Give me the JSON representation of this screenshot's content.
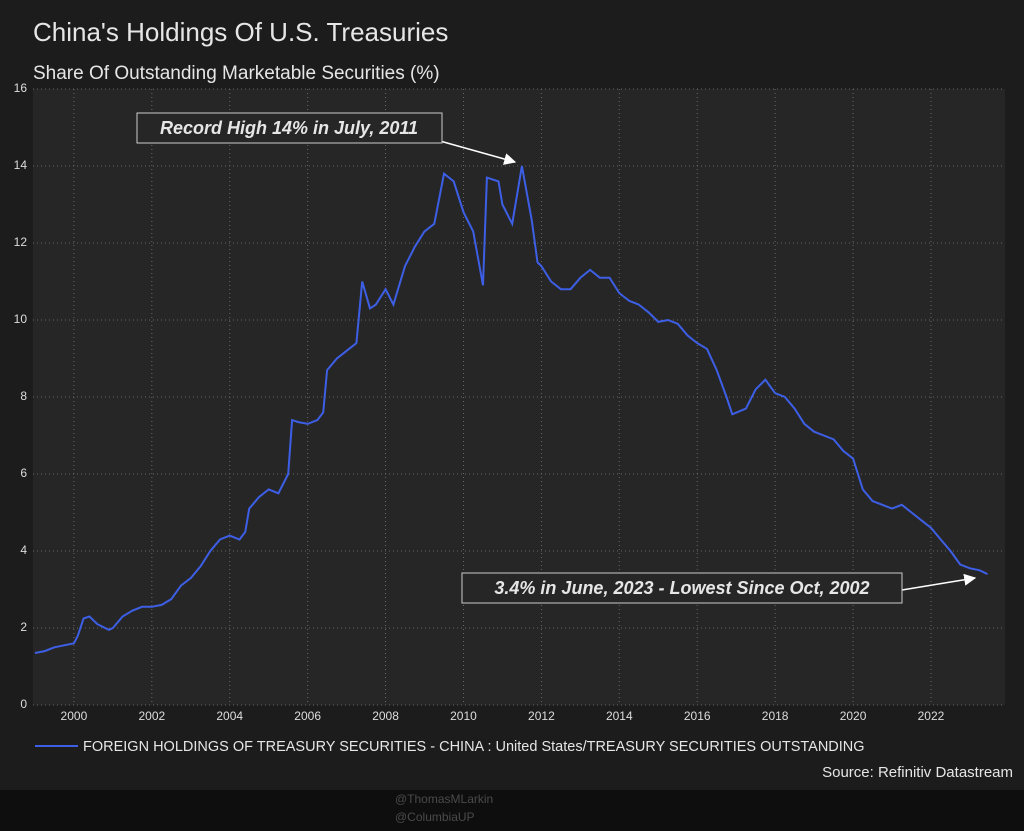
{
  "chart_data": {
    "type": "line",
    "title": "China's Holdings Of U.S. Treasuries",
    "subtitle": "Share Of Outstanding Marketable Securities (%)",
    "annotations": [
      "Record High 14% in July, 2011",
      "3.4% in June, 2023 - Lowest Since Oct, 2002"
    ],
    "source": "Source: Refinitiv Datastream",
    "watermark": [
      "@ThomasMLarkin",
      "@ColumbiaUP"
    ],
    "x": [
      1999.0,
      1999.25,
      1999.5,
      1999.75,
      2000.0,
      2000.1,
      2000.25,
      2000.4,
      2000.6,
      2000.9,
      2001.0,
      2001.25,
      2001.5,
      2001.75,
      2002.0,
      2002.25,
      2002.5,
      2002.75,
      2003.0,
      2003.25,
      2003.5,
      2003.75,
      2004.0,
      2004.25,
      2004.4,
      2004.5,
      2004.75,
      2005.0,
      2005.25,
      2005.5,
      2005.6,
      2005.75,
      2006.0,
      2006.25,
      2006.4,
      2006.5,
      2006.75,
      2007.0,
      2007.25,
      2007.4,
      2007.6,
      2007.75,
      2008.0,
      2008.2,
      2008.5,
      2008.75,
      2009.0,
      2009.25,
      2009.5,
      2009.75,
      2010.0,
      2010.25,
      2010.5,
      2010.6,
      2010.9,
      2011.0,
      2011.25,
      2011.5,
      2011.75,
      2011.9,
      2012.0,
      2012.25,
      2012.5,
      2012.75,
      2013.0,
      2013.25,
      2013.5,
      2013.75,
      2014.0,
      2014.25,
      2014.5,
      2014.75,
      2015.0,
      2015.25,
      2015.5,
      2015.75,
      2016.0,
      2016.25,
      2016.5,
      2016.75,
      2016.9,
      2017.25,
      2017.5,
      2017.75,
      2018.0,
      2018.25,
      2018.5,
      2018.75,
      2019.0,
      2019.25,
      2019.5,
      2019.75,
      2020.0,
      2020.25,
      2020.5,
      2020.75,
      2021.0,
      2021.25,
      2021.5,
      2021.75,
      2022.0,
      2022.25,
      2022.5,
      2022.75,
      2023.0,
      2023.25,
      2023.45
    ],
    "series": [
      {
        "name": "FOREIGN HOLDINGS OF TREASURY SECURITIES - CHINA : United States/TREASURY SECURITIES OUTSTANDING",
        "color": "#3d5fe6",
        "values": [
          1.35,
          1.4,
          1.5,
          1.55,
          1.6,
          1.8,
          2.25,
          2.3,
          2.1,
          1.95,
          2.0,
          2.3,
          2.45,
          2.55,
          2.55,
          2.6,
          2.75,
          3.1,
          3.3,
          3.6,
          4.0,
          4.3,
          4.4,
          4.3,
          4.5,
          5.1,
          5.4,
          5.6,
          5.5,
          6.0,
          7.4,
          7.35,
          7.3,
          7.4,
          7.6,
          8.7,
          9.0,
          9.2,
          9.4,
          11.0,
          10.3,
          10.4,
          10.8,
          10.4,
          11.4,
          11.9,
          12.3,
          12.5,
          13.8,
          13.6,
          12.8,
          12.3,
          10.9,
          13.7,
          13.6,
          13.0,
          12.5,
          14.0,
          12.6,
          11.5,
          11.4,
          11.0,
          10.8,
          10.8,
          11.1,
          11.3,
          11.1,
          11.1,
          10.7,
          10.5,
          10.4,
          10.2,
          9.95,
          10.0,
          9.9,
          9.6,
          9.4,
          9.25,
          8.7,
          8.0,
          7.55,
          7.7,
          8.2,
          8.45,
          8.1,
          8.0,
          7.7,
          7.3,
          7.1,
          7.0,
          6.9,
          6.6,
          6.4,
          5.6,
          5.3,
          5.2,
          5.1,
          5.2,
          5.0,
          4.8,
          4.6,
          4.3,
          4.0,
          3.65,
          3.55,
          3.5,
          3.4
        ]
      }
    ],
    "xlim": [
      1998.95,
      2023.9
    ],
    "xticks": [
      2000,
      2002,
      2004,
      2006,
      2008,
      2010,
      2012,
      2014,
      2016,
      2018,
      2020,
      2022
    ],
    "ylim": [
      0,
      16
    ],
    "yticks": [
      0,
      2,
      4,
      6,
      8,
      10,
      12,
      14,
      16
    ],
    "grid": true
  }
}
